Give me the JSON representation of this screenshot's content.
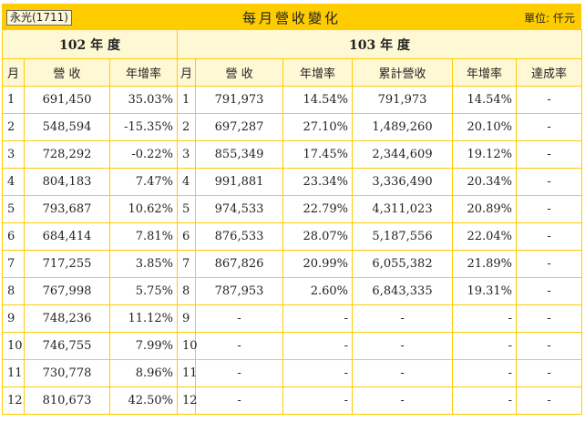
{
  "header": {
    "company": "永光(1711)",
    "title": "每月營收變化",
    "unit": "單位: 仟元"
  },
  "year_headers": {
    "y102": "102 年 度",
    "y103": "103 年 度"
  },
  "column_headers": {
    "month_a": "月",
    "revenue_a": "營 收",
    "yoy_a": "年增率",
    "month_b": "月",
    "revenue_b": "營 收",
    "yoy_b": "年增率",
    "cumulative": "累計營收",
    "cum_yoy": "年增率",
    "achievement": "達成率"
  },
  "rows": [
    {
      "m102": "1",
      "rev102": "691,450",
      "yoy102": "35.03%",
      "m103": "1",
      "rev103": "791,973",
      "yoy103": "14.54%",
      "cum": "791,973",
      "cumyoy": "14.54%",
      "ach": "-"
    },
    {
      "m102": "2",
      "rev102": "548,594",
      "yoy102": "-15.35%",
      "m103": "2",
      "rev103": "697,287",
      "yoy103": "27.10%",
      "cum": "1,489,260",
      "cumyoy": "20.10%",
      "ach": "-"
    },
    {
      "m102": "3",
      "rev102": "728,292",
      "yoy102": "-0.22%",
      "m103": "3",
      "rev103": "855,349",
      "yoy103": "17.45%",
      "cum": "2,344,609",
      "cumyoy": "19.12%",
      "ach": "-"
    },
    {
      "m102": "4",
      "rev102": "804,183",
      "yoy102": "7.47%",
      "m103": "4",
      "rev103": "991,881",
      "yoy103": "23.34%",
      "cum": "3,336,490",
      "cumyoy": "20.34%",
      "ach": "-"
    },
    {
      "m102": "5",
      "rev102": "793,687",
      "yoy102": "10.62%",
      "m103": "5",
      "rev103": "974,533",
      "yoy103": "22.79%",
      "cum": "4,311,023",
      "cumyoy": "20.89%",
      "ach": "-"
    },
    {
      "m102": "6",
      "rev102": "684,414",
      "yoy102": "7.81%",
      "m103": "6",
      "rev103": "876,533",
      "yoy103": "28.07%",
      "cum": "5,187,556",
      "cumyoy": "22.04%",
      "ach": "-"
    },
    {
      "m102": "7",
      "rev102": "717,255",
      "yoy102": "3.85%",
      "m103": "7",
      "rev103": "867,826",
      "yoy103": "20.99%",
      "cum": "6,055,382",
      "cumyoy": "21.89%",
      "ach": "-"
    },
    {
      "m102": "8",
      "rev102": "767,998",
      "yoy102": "5.75%",
      "m103": "8",
      "rev103": "787,953",
      "yoy103": "2.60%",
      "cum": "6,843,335",
      "cumyoy": "19.31%",
      "ach": "-"
    },
    {
      "m102": "9",
      "rev102": "748,236",
      "yoy102": "11.12%",
      "m103": "9",
      "rev103": "-",
      "yoy103": "-",
      "cum": "-",
      "cumyoy": "-",
      "ach": "-"
    },
    {
      "m102": "10",
      "rev102": "746,755",
      "yoy102": "7.99%",
      "m103": "10",
      "rev103": "-",
      "yoy103": "-",
      "cum": "-",
      "cumyoy": "-",
      "ach": "-"
    },
    {
      "m102": "11",
      "rev102": "730,778",
      "yoy102": "8.96%",
      "m103": "11",
      "rev103": "-",
      "yoy103": "-",
      "cum": "-",
      "cumyoy": "-",
      "ach": "-"
    },
    {
      "m102": "12",
      "rev102": "810,673",
      "yoy102": "42.50%",
      "m103": "12",
      "rev103": "-",
      "yoy103": "-",
      "cum": "-",
      "cumyoy": "-",
      "ach": "-"
    }
  ]
}
